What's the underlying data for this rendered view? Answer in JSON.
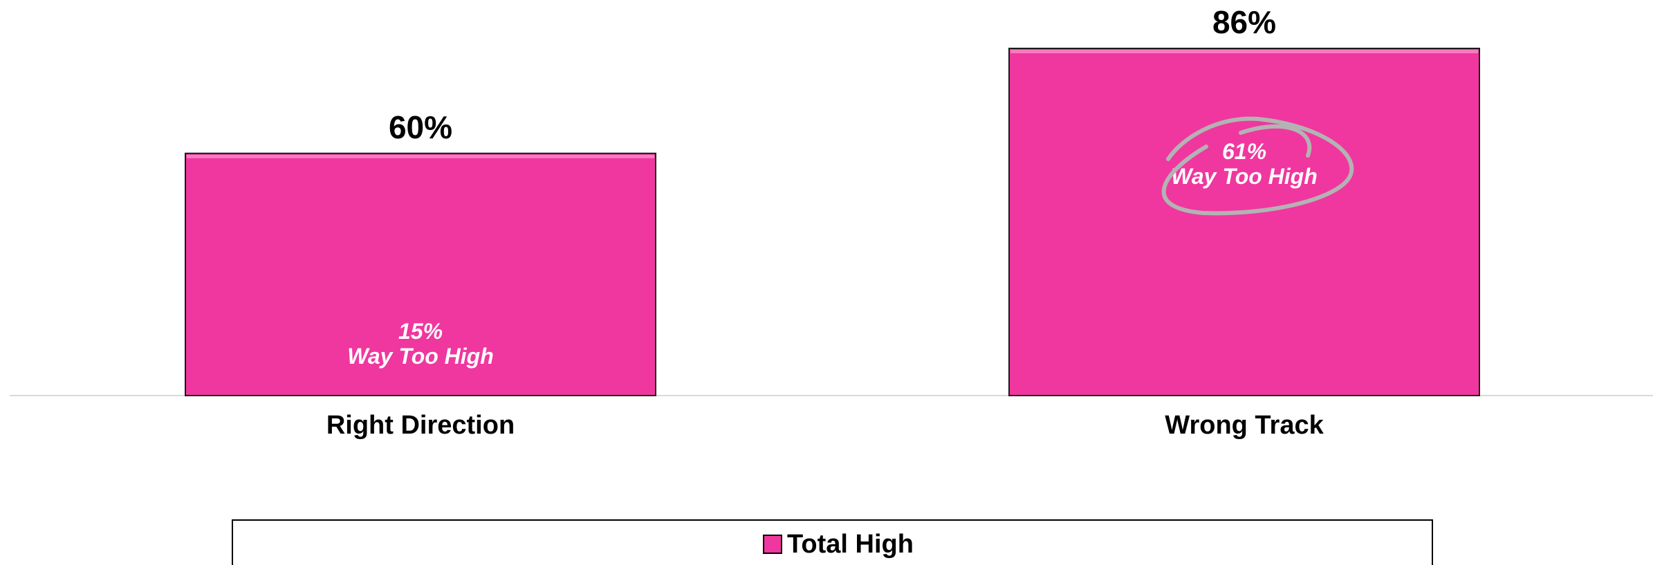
{
  "chart_data": {
    "type": "bar",
    "categories": [
      "Right Direction",
      "Wrong Track"
    ],
    "series": [
      {
        "name": "Total High",
        "values": [
          60,
          86
        ],
        "value_labels": [
          "60%",
          "86%"
        ],
        "color": "#f0379f"
      }
    ],
    "annotations": [
      {
        "category": "Right Direction",
        "lines": [
          "15%",
          "Way Too High"
        ],
        "circled": false
      },
      {
        "category": "Wrong Track",
        "lines": [
          "61%",
          "Way Too High"
        ],
        "circled": true
      }
    ],
    "ylim": [
      0,
      86
    ],
    "grid": false,
    "legend": "bottom",
    "colors": {
      "bar": "#f0379f",
      "bar_border": "#1a1a1a",
      "circle": "#b3b3b3",
      "axis": "#d9d9d9"
    }
  }
}
